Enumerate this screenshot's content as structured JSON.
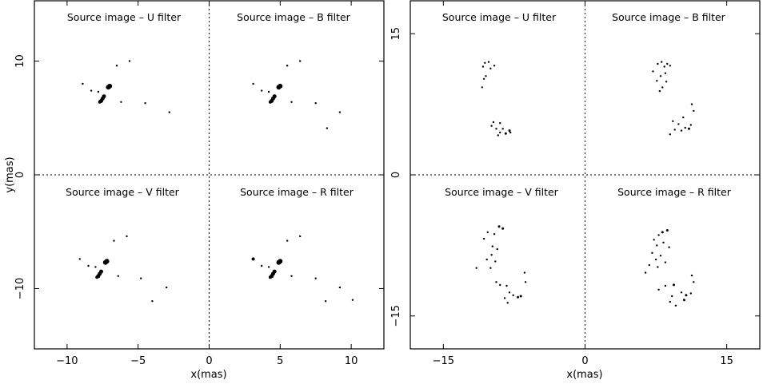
{
  "colors": {
    "ink": "#000000",
    "background": "#ffffff"
  },
  "chart_data": [
    {
      "type": "scatter",
      "xlabel": "x(mas)",
      "ylabel": "y(mas)",
      "xlim": [
        -12.3,
        12.3
      ],
      "ylim": [
        -15.3,
        15.3
      ],
      "xticks": [
        -10,
        -5,
        0,
        5,
        10
      ],
      "yticks": [
        -10,
        0,
        10
      ],
      "quadrant_titles": {
        "top_left": "Source image – U filter",
        "top_right": "Source image – B filter",
        "bottom_left": "Source image – V filter",
        "bottom_right": "Source image – R filter"
      },
      "series": [
        {
          "points": [
            [
              -7.0,
              7.8,
              3
            ],
            [
              -7.1,
              7.7,
              3
            ],
            [
              -7.4,
              6.9,
              2.5
            ],
            [
              -7.5,
              6.7,
              2.5
            ],
            [
              -7.6,
              6.5,
              2.5
            ],
            [
              -7.7,
              6.4,
              2
            ],
            [
              -6.5,
              9.6,
              1.2
            ],
            [
              -5.6,
              10.0,
              1.2
            ],
            [
              -7.8,
              7.3,
              1.2
            ],
            [
              -8.3,
              7.4,
              1.2
            ],
            [
              -6.2,
              6.4,
              1.2
            ],
            [
              -8.9,
              8.0,
              1.2
            ],
            [
              -4.5,
              6.3,
              1.2
            ],
            [
              -2.8,
              5.5,
              1.2
            ]
          ]
        },
        {
          "points": [
            [
              5.0,
              7.8,
              3
            ],
            [
              4.9,
              7.7,
              3
            ],
            [
              4.6,
              6.9,
              2.5
            ],
            [
              4.5,
              6.7,
              2.5
            ],
            [
              4.4,
              6.5,
              2.5
            ],
            [
              4.3,
              6.4,
              2
            ],
            [
              5.5,
              9.6,
              1.2
            ],
            [
              6.4,
              10.0,
              1.2
            ],
            [
              4.2,
              7.3,
              1.2
            ],
            [
              3.7,
              7.4,
              1.2
            ],
            [
              5.8,
              6.4,
              1.2
            ],
            [
              3.1,
              8.0,
              1.2
            ],
            [
              7.5,
              6.3,
              1.2
            ],
            [
              9.2,
              5.5,
              1.2
            ],
            [
              8.3,
              4.1,
              1.2
            ]
          ]
        },
        {
          "points": [
            [
              -7.2,
              -7.6,
              3
            ],
            [
              -7.3,
              -7.7,
              3
            ],
            [
              -7.6,
              -8.5,
              2.5
            ],
            [
              -7.7,
              -8.7,
              2.5
            ],
            [
              -7.8,
              -8.9,
              2.5
            ],
            [
              -7.9,
              -9.0,
              2
            ],
            [
              -6.7,
              -5.8,
              1.2
            ],
            [
              -5.8,
              -5.4,
              1.2
            ],
            [
              -8.0,
              -8.1,
              1.2
            ],
            [
              -8.5,
              -8.0,
              1.2
            ],
            [
              -6.4,
              -8.9,
              1.2
            ],
            [
              -9.1,
              -7.4,
              1.2
            ],
            [
              -4.8,
              -9.1,
              1.2
            ],
            [
              -3.0,
              -9.9,
              1.2
            ],
            [
              -4.0,
              -11.1,
              1.2
            ]
          ]
        },
        {
          "points": [
            [
              5.0,
              -7.6,
              3
            ],
            [
              4.9,
              -7.7,
              3
            ],
            [
              4.6,
              -8.5,
              2.5
            ],
            [
              4.5,
              -8.7,
              2.5
            ],
            [
              4.4,
              -8.9,
              2.5
            ],
            [
              4.3,
              -9.0,
              2
            ],
            [
              5.5,
              -5.8,
              1.2
            ],
            [
              6.4,
              -5.4,
              1.2
            ],
            [
              4.2,
              -8.1,
              1.2
            ],
            [
              3.7,
              -8.0,
              1.2
            ],
            [
              5.8,
              -8.9,
              1.2
            ],
            [
              3.1,
              -7.4,
              2
            ],
            [
              7.5,
              -9.1,
              1.2
            ],
            [
              9.2,
              -9.9,
              1.2
            ],
            [
              8.2,
              -11.1,
              1.2
            ],
            [
              10.1,
              -11.0,
              1.2
            ]
          ]
        }
      ]
    },
    {
      "type": "scatter",
      "xlabel": "x(mas)",
      "ylabel": "",
      "xlim": [
        -18.5,
        18.5
      ],
      "ylim": [
        -18.5,
        18.5
      ],
      "xticks": [
        -15,
        0,
        15
      ],
      "yticks": [
        -15,
        0,
        15
      ],
      "quadrant_titles": {
        "top_left": "Source image – U filter",
        "top_right": "Source image – B filter",
        "bottom_left": "Source image – V filter",
        "bottom_right": "Source image – R filter"
      },
      "series": [
        {
          "points": [
            [
              -10.6,
              11.9,
              1.2
            ],
            [
              -10.2,
              12.0,
              1.2
            ],
            [
              -10.8,
              11.5,
              1.2
            ],
            [
              -10.0,
              11.3,
              1.2
            ],
            [
              -9.6,
              11.6,
              1.2
            ],
            [
              -10.5,
              10.5,
              1.2
            ],
            [
              -10.7,
              10.2,
              1.2
            ],
            [
              -10.9,
              9.3,
              1.2
            ],
            [
              -9.7,
              5.6,
              1.2
            ],
            [
              -9.9,
              5.2,
              1.2
            ],
            [
              -9.4,
              4.9,
              1.2
            ],
            [
              -9.0,
              4.5,
              1.2
            ],
            [
              -8.7,
              4.9,
              1.2
            ],
            [
              -8.4,
              4.4,
              1.5
            ],
            [
              -8.0,
              4.7,
              1.5
            ],
            [
              -9.0,
              5.5,
              1.2
            ],
            [
              -9.2,
              4.2,
              1.2
            ],
            [
              -7.9,
              4.5,
              1.2
            ]
          ]
        },
        {
          "points": [
            [
              7.7,
              11.8,
              1.2
            ],
            [
              8.1,
              12.0,
              1.2
            ],
            [
              8.4,
              11.5,
              1.2
            ],
            [
              8.7,
              11.8,
              1.2
            ],
            [
              9.0,
              11.6,
              1.2
            ],
            [
              7.2,
              11.0,
              1.2
            ],
            [
              8.0,
              10.5,
              1.2
            ],
            [
              8.5,
              10.8,
              1.2
            ],
            [
              7.6,
              10.0,
              1.2
            ],
            [
              8.2,
              9.3,
              1.2
            ],
            [
              7.9,
              8.9,
              1.2
            ],
            [
              8.6,
              9.9,
              1.2
            ],
            [
              11.3,
              7.5,
              1.2
            ],
            [
              11.5,
              6.8,
              1.2
            ],
            [
              10.4,
              6.1,
              1.2
            ],
            [
              9.9,
              5.4,
              1.2
            ],
            [
              9.3,
              5.7,
              1.2
            ],
            [
              9.5,
              4.8,
              1.2
            ],
            [
              10.6,
              5.0,
              1.2
            ],
            [
              11.2,
              5.3,
              1.2
            ],
            [
              11.0,
              4.9,
              1.5
            ],
            [
              9.0,
              4.3,
              1.2
            ],
            [
              10.2,
              4.7,
              1.2
            ]
          ]
        },
        {
          "points": [
            [
              -9.1,
              -5.5,
              1.5
            ],
            [
              -8.7,
              -5.7,
              1.5
            ],
            [
              -9.6,
              -6.3,
              1.2
            ],
            [
              -10.3,
              -6.1,
              1.2
            ],
            [
              -10.7,
              -6.8,
              1.2
            ],
            [
              -9.8,
              -7.6,
              1.2
            ],
            [
              -9.3,
              -7.9,
              1.2
            ],
            [
              -9.9,
              -8.5,
              1.2
            ],
            [
              -9.5,
              -9.2,
              1.2
            ],
            [
              -10.4,
              -9.0,
              1.2
            ],
            [
              -11.5,
              -9.9,
              1.2
            ],
            [
              -10.0,
              -9.9,
              1.2
            ],
            [
              -6.4,
              -10.4,
              1.2
            ],
            [
              -6.3,
              -11.4,
              1.2
            ],
            [
              -9.4,
              -11.4,
              1.2
            ],
            [
              -9.0,
              -11.7,
              1.2
            ],
            [
              -8.3,
              -11.8,
              1.2
            ],
            [
              -8.0,
              -12.5,
              1.2
            ],
            [
              -7.6,
              -12.8,
              1.2
            ],
            [
              -7.1,
              -13.0,
              1.5
            ],
            [
              -6.8,
              -12.9,
              1.5
            ],
            [
              -8.5,
              -13.1,
              1.2
            ],
            [
              -8.2,
              -13.6,
              1.2
            ]
          ]
        },
        {
          "points": [
            [
              8.2,
              -6.1,
              1.5
            ],
            [
              8.7,
              -5.9,
              1.5
            ],
            [
              7.8,
              -6.4,
              1.2
            ],
            [
              7.3,
              -6.9,
              1.2
            ],
            [
              8.3,
              -7.2,
              1.2
            ],
            [
              7.6,
              -7.5,
              1.2
            ],
            [
              8.9,
              -7.7,
              1.2
            ],
            [
              7.1,
              -8.3,
              1.2
            ],
            [
              8.0,
              -8.6,
              1.2
            ],
            [
              7.5,
              -9.0,
              1.2
            ],
            [
              8.5,
              -9.3,
              1.2
            ],
            [
              6.8,
              -9.6,
              1.2
            ],
            [
              7.7,
              -9.8,
              1.2
            ],
            [
              6.4,
              -10.4,
              1.2
            ],
            [
              11.3,
              -10.7,
              1.2
            ],
            [
              11.5,
              -11.4,
              1.2
            ],
            [
              9.4,
              -11.7,
              1.5
            ],
            [
              8.5,
              -11.8,
              1.2
            ],
            [
              7.8,
              -12.2,
              1.2
            ],
            [
              10.2,
              -12.5,
              1.2
            ],
            [
              10.7,
              -12.8,
              1.5
            ],
            [
              11.2,
              -12.6,
              1.2
            ],
            [
              10.5,
              -13.3,
              1.5
            ],
            [
              9.2,
              -12.9,
              1.2
            ],
            [
              9.0,
              -13.5,
              1.2
            ],
            [
              9.6,
              -13.9,
              1.2
            ]
          ]
        }
      ]
    }
  ]
}
